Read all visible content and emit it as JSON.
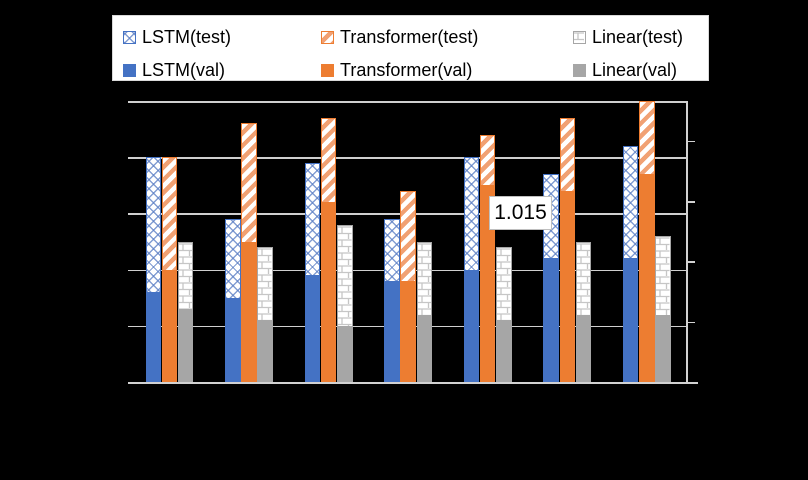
{
  "legend": {
    "items": [
      {
        "label": "LSTM(test)",
        "pattern": "weave-blue",
        "style": "hatched",
        "color": "#4472C4"
      },
      {
        "label": "Transformer(test)",
        "pattern": "stripe-orange",
        "style": "hatched",
        "color": "#ED7D31"
      },
      {
        "label": "Linear(test)",
        "pattern": "brick-gray",
        "style": "hatched",
        "color": "#A6A6A6"
      },
      {
        "label": "LSTM(val)",
        "pattern": "solid",
        "style": "solid",
        "color": "#4472C4"
      },
      {
        "label": "Transformer(val)",
        "pattern": "solid",
        "style": "solid",
        "color": "#ED7D31"
      },
      {
        "label": "Linear(val)",
        "pattern": "solid",
        "style": "solid",
        "color": "#A6A6A6"
      }
    ]
  },
  "colors": {
    "background": "#000000",
    "blue": "#4472C4",
    "orange": "#ED7D31",
    "gray": "#A6A6A6",
    "gridline": "#CFCFCF",
    "legend_border": "#D9D9D9"
  },
  "chart_data": {
    "type": "bar",
    "title": "",
    "xlabel": "",
    "ylabel": "",
    "categories": [
      "",
      "",
      "",
      "",
      "",
      "",
      ""
    ],
    "series": [
      {
        "name": "LSTM(test)",
        "group": "LSTM",
        "split": "test",
        "style": "hatched",
        "color": "#4472C4",
        "values": [
          1.02,
          1.009,
          1.019,
          1.009,
          1.02,
          1.017,
          1.022
        ]
      },
      {
        "name": "LSTM(val)",
        "group": "LSTM",
        "split": "val",
        "style": "solid",
        "color": "#4472C4",
        "values": [
          0.996,
          0.995,
          0.999,
          0.998,
          1.0,
          1.002,
          1.002
        ]
      },
      {
        "name": "Transformer(test)",
        "group": "Transformer",
        "split": "test",
        "style": "hatched",
        "color": "#ED7D31",
        "values": [
          1.02,
          1.026,
          1.027,
          1.014,
          1.024,
          1.027,
          1.03
        ]
      },
      {
        "name": "Transformer(val)",
        "group": "Transformer",
        "split": "val",
        "style": "solid",
        "color": "#ED7D31",
        "values": [
          1.0,
          1.005,
          1.012,
          0.998,
          1.015,
          1.014,
          1.017
        ]
      },
      {
        "name": "Linear(test)",
        "group": "Linear",
        "split": "test",
        "style": "hatched",
        "color": "#A6A6A6",
        "values": [
          1.005,
          1.004,
          1.008,
          1.005,
          1.004,
          1.005,
          1.006
        ]
      },
      {
        "name": "Linear(val)",
        "group": "Linear",
        "split": "val",
        "style": "solid",
        "color": "#A6A6A6",
        "values": [
          0.993,
          0.991,
          0.99,
          0.992,
          0.991,
          0.992,
          0.992
        ]
      }
    ],
    "ylim": [
      0.98,
      1.03
    ],
    "gridline_step": 0.01,
    "grid": true,
    "legend_position": "top",
    "axis_tick_labels_visible": false,
    "annotations": [
      {
        "text": "1.015",
        "series": "Transformer(val)",
        "category_index": 4
      }
    ]
  }
}
